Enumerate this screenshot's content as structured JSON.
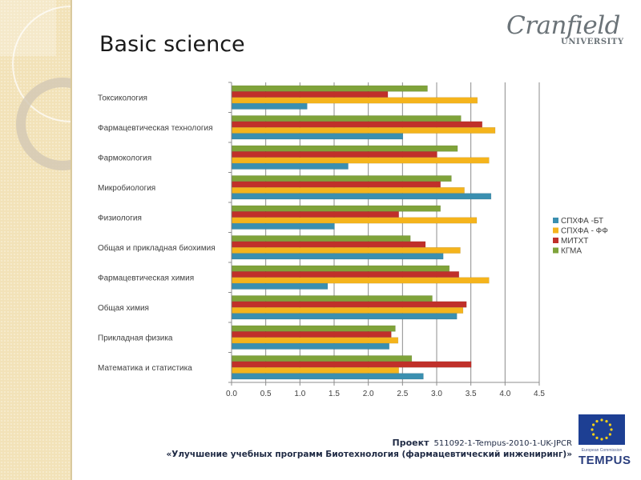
{
  "slide": {
    "title": "Basic science",
    "logo": {
      "main": "Cranfield",
      "sub": "UNIVERSITY"
    },
    "footer": {
      "project_label": "Проект",
      "project_code": "511092-1-Tempus-2010-1-UK-JPCR",
      "project_name": "«Улучшение учебных программ Биотехнология (фармацевтический инжениринг)»"
    },
    "tempus": {
      "caption": "European Commission",
      "name": "TEMPUS"
    }
  },
  "chart_data": {
    "type": "bar",
    "orientation": "horizontal",
    "title": "",
    "xlabel": "",
    "ylabel": "",
    "xlim": [
      0,
      4.5
    ],
    "xticks": [
      "0.0",
      "0.5",
      "1.0",
      "1.5",
      "2.0",
      "2.5",
      "3.0",
      "3.5",
      "4.0",
      "4.5"
    ],
    "grid": "vertical",
    "legend_position": "right",
    "categories": [
      "Токсикология",
      "Фармацевтическая технология",
      "Фармокология",
      "Микробиология",
      "Физиология",
      "Общая и прикладная биохимия",
      "Фармацевтическая химия",
      "Общая химия",
      "Прикладная физика",
      "Математика и статистика"
    ],
    "series": [
      {
        "name": "СПХФА -БТ",
        "color": "#3a8fb0",
        "values": [
          1.1,
          2.5,
          1.7,
          3.79,
          1.5,
          3.09,
          1.4,
          3.29,
          2.3,
          2.8
        ]
      },
      {
        "name": "СПХФА - ФФ",
        "color": "#f5b41c",
        "values": [
          3.59,
          3.85,
          3.76,
          3.4,
          3.58,
          3.34,
          3.76,
          3.38,
          2.43,
          2.44
        ]
      },
      {
        "name": "МИТХТ",
        "color": "#c0302a",
        "values": [
          2.28,
          3.66,
          3.0,
          3.05,
          2.44,
          2.83,
          3.32,
          3.43,
          2.33,
          3.5
        ]
      },
      {
        "name": "КГМА",
        "color": "#7fa33a",
        "values": [
          2.86,
          3.35,
          3.3,
          3.21,
          3.05,
          2.61,
          3.18,
          2.93,
          2.39,
          2.63
        ]
      }
    ]
  }
}
